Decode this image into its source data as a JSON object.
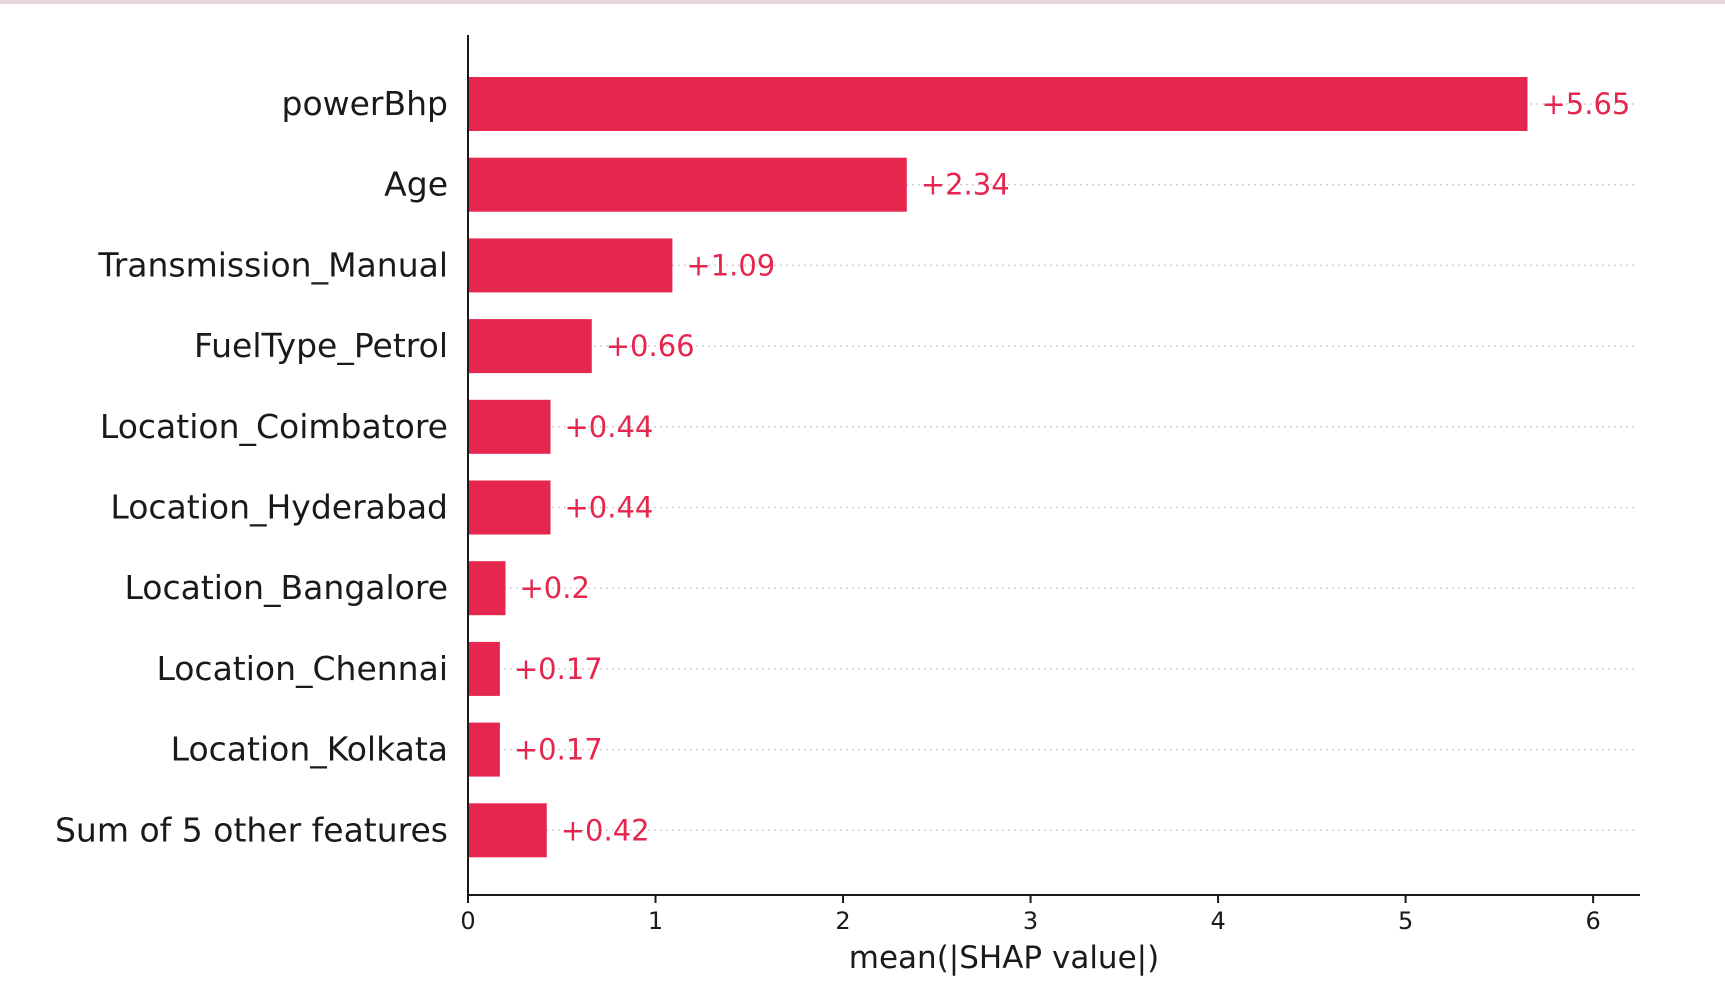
{
  "chart_data": {
    "type": "bar",
    "orientation": "horizontal",
    "categories": [
      "powerBhp",
      "Age",
      "Transmission_Manual",
      "FuelType_Petrol",
      "Location_Coimbatore",
      "Location_Hyderabad",
      "Location_Bangalore",
      "Location_Chennai",
      "Location_Kolkata",
      "Sum of 5 other features"
    ],
    "values": [
      5.65,
      2.34,
      1.09,
      0.66,
      0.44,
      0.44,
      0.2,
      0.17,
      0.17,
      0.42
    ],
    "value_labels": [
      "+5.65",
      "+2.34",
      "+1.09",
      "+0.66",
      "+0.44",
      "+0.44",
      "+0.2",
      "+0.17",
      "+0.17",
      "+0.42"
    ],
    "xlabel": "mean(|SHAP value|)",
    "ylabel": "",
    "xlim": [
      0,
      6.25
    ],
    "xticks": [
      "0",
      "1",
      "2",
      "3",
      "4",
      "5",
      "6"
    ],
    "grid": "dotted horizontal row guides",
    "bar_color": "#e5264f",
    "label_color": "#e5264f"
  }
}
